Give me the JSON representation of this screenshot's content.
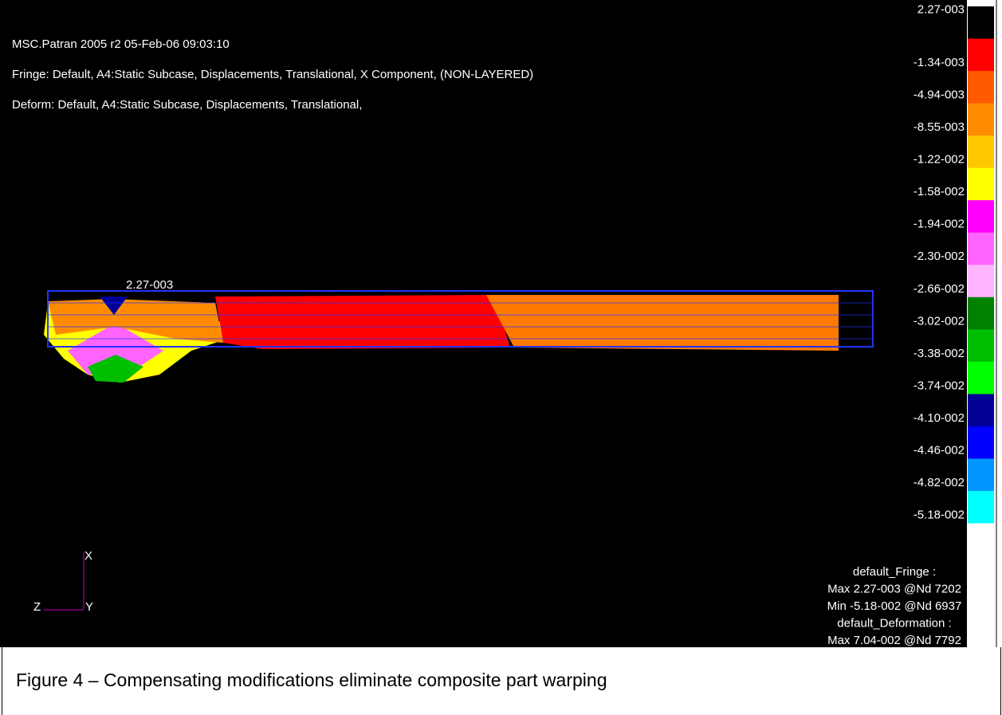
{
  "header": {
    "lines": [
      "MSC.Patran 2005 r2 05-Feb-06 09:03:10",
      "Fringe: Default, A4:Static Subcase, Displacements, Translational, X Component, (NON-LAYERED)",
      "Deform: Default, A4:Static Subcase, Displacements, Translational,"
    ]
  },
  "legend": {
    "labels": [
      "2.27-003",
      "-1.34-003",
      "-4.94-003",
      "-8.55-003",
      "-1.22-002",
      "-1.58-002",
      "-1.94-002",
      "-2.30-002",
      "-2.66-002",
      "-3.02-002",
      "-3.38-002",
      "-3.74-002",
      "-4.10-002",
      "-4.46-002",
      "-4.82-002",
      "-5.18-002"
    ],
    "colors": [
      "#000000",
      "#ff0000",
      "#ff5a00",
      "#ff8c00",
      "#ffc800",
      "#ffff00",
      "#ff00ff",
      "#ff64ff",
      "#ffb4ff",
      "#008200",
      "#00be00",
      "#00ff00",
      "#000096",
      "#0000ff",
      "#0096ff",
      "#00ffff",
      "#ffffff"
    ]
  },
  "marker_label": "2.27-003",
  "axes": {
    "x": "X",
    "y": "Y",
    "z": "Z"
  },
  "summary": [
    "default_Fringe :",
    "Max 2.27-003 @Nd 7202",
    "Min -5.18-002 @Nd 6937",
    "default_Deformation :",
    "Max 7.04-002 @Nd 7792"
  ],
  "caption": "Figure 4 – Compensating modifications eliminate composite part warping"
}
